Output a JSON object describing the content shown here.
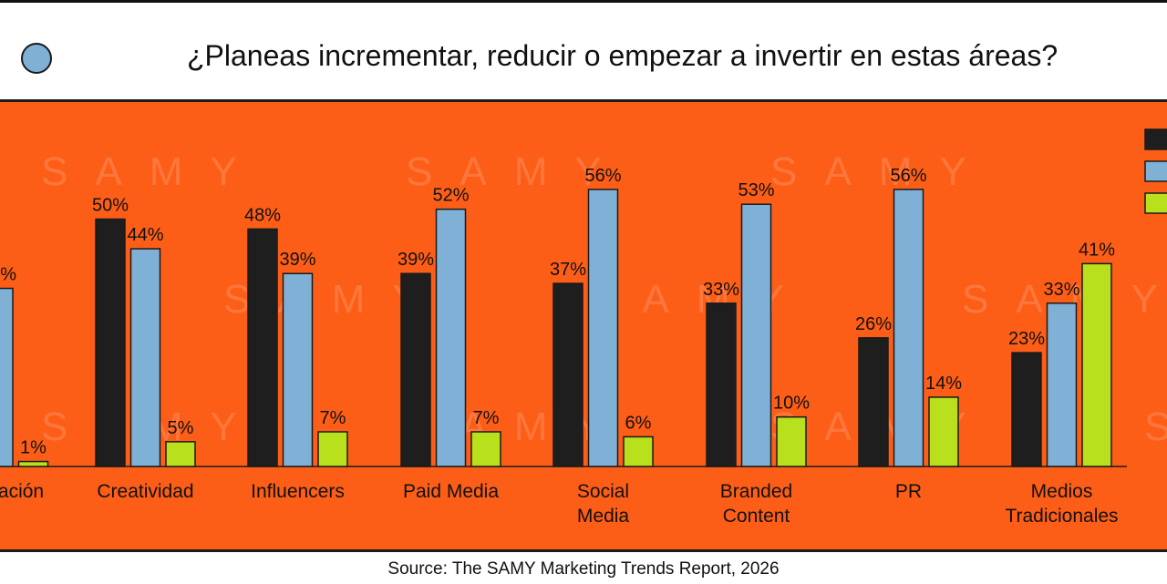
{
  "header": {
    "title": "¿Planeas incrementar, reducir o empezar a invertir en estas áreas?"
  },
  "watermark": "SAMY",
  "source": "Source: The SAMY Marketing Trends Report, 2026",
  "chart_data": {
    "type": "bar",
    "title": "¿Planeas incrementar, reducir o empezar a invertir en estas áreas?",
    "categories": [
      [
        "ación"
      ],
      [
        "Creatividad"
      ],
      [
        "Influencers"
      ],
      [
        "Paid Media"
      ],
      [
        "Social",
        "Media"
      ],
      [
        "Branded",
        "Content"
      ],
      [
        "PR"
      ],
      [
        "Medios",
        "Tradicionales"
      ]
    ],
    "series": [
      {
        "color": "#1e1e1e",
        "values": [
          null,
          50,
          48,
          39,
          37,
          33,
          26,
          23
        ]
      },
      {
        "color": "#7fb0d6",
        "values": [
          36,
          44,
          39,
          52,
          56,
          53,
          56,
          33
        ]
      },
      {
        "color": "#b8e01d",
        "values": [
          1,
          5,
          7,
          7,
          6,
          10,
          14,
          41
        ]
      }
    ],
    "value_suffix": "%",
    "ylim": [
      0,
      60
    ],
    "grid": false,
    "legend_position": "right",
    "colors": {
      "panel_background": "#fd5e17",
      "outline": "#1a1a1a"
    }
  }
}
